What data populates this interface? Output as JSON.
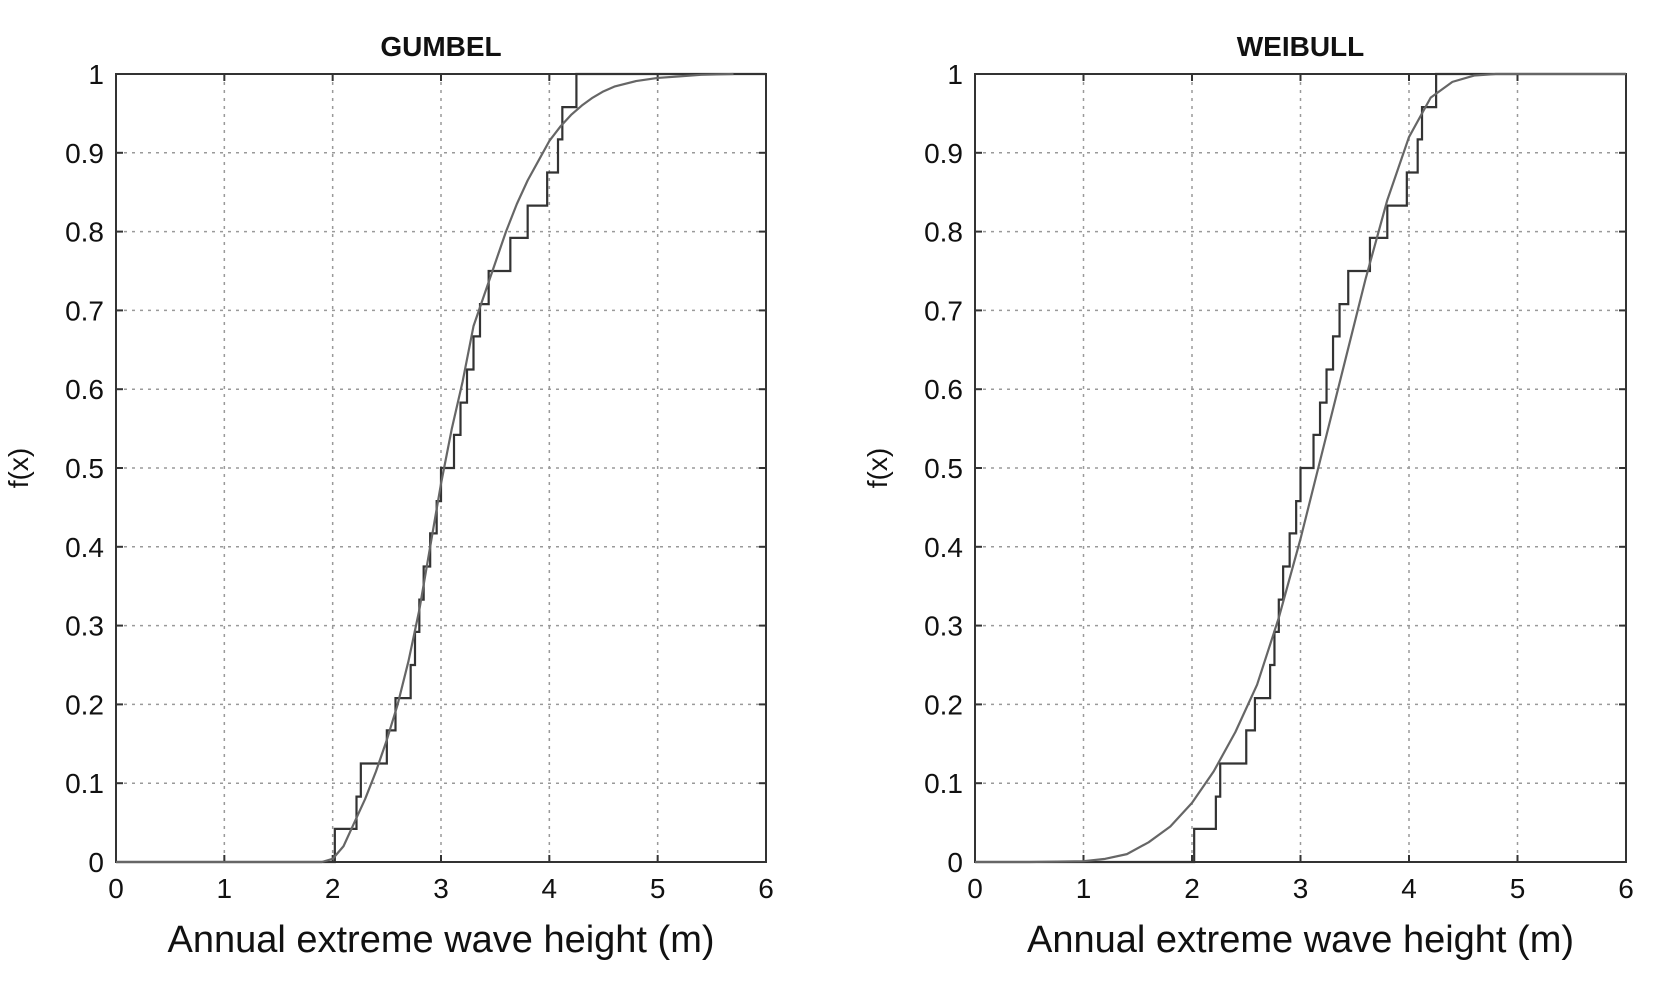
{
  "chart_data": [
    {
      "type": "line",
      "title": "GUMBEL",
      "xlabel": "Annual extreme wave height (m)",
      "ylabel": "f(x)",
      "xlim": [
        0,
        6
      ],
      "ylim": [
        0,
        1
      ],
      "xticks": [
        "0",
        "1",
        "2",
        "3",
        "4",
        "5",
        "6"
      ],
      "yticks": [
        "0",
        "0.1",
        "0.2",
        "0.3",
        "0.4",
        "0.5",
        "0.6",
        "0.7",
        "0.8",
        "0.9",
        "1"
      ],
      "grid": true,
      "series": [
        {
          "kind": "empirical-step",
          "color": "#333333",
          "steps": [
            [
              0,
              0
            ],
            [
              2.02,
              0.042
            ],
            [
              2.22,
              0.083
            ],
            [
              2.26,
              0.125
            ],
            [
              2.5,
              0.167
            ],
            [
              2.58,
              0.208
            ],
            [
              2.72,
              0.25
            ],
            [
              2.76,
              0.292
            ],
            [
              2.8,
              0.333
            ],
            [
              2.84,
              0.375
            ],
            [
              2.9,
              0.417
            ],
            [
              2.96,
              0.458
            ],
            [
              3.0,
              0.5
            ],
            [
              3.12,
              0.542
            ],
            [
              3.18,
              0.583
            ],
            [
              3.24,
              0.625
            ],
            [
              3.3,
              0.667
            ],
            [
              3.36,
              0.708
            ],
            [
              3.44,
              0.75
            ],
            [
              3.64,
              0.792
            ],
            [
              3.8,
              0.833
            ],
            [
              3.98,
              0.875
            ],
            [
              4.08,
              0.917
            ],
            [
              4.12,
              0.958
            ],
            [
              4.25,
              1.0
            ],
            [
              6,
              1.0
            ]
          ]
        },
        {
          "kind": "fitted-cdf",
          "color": "#666666",
          "x": [
            0,
            1.0,
            1.9,
            2.0,
            2.1,
            2.2,
            2.3,
            2.4,
            2.5,
            2.6,
            2.7,
            2.8,
            2.9,
            3.0,
            3.1,
            3.2,
            3.3,
            3.4,
            3.5,
            3.6,
            3.7,
            3.8,
            3.9,
            4.0,
            4.1,
            4.2,
            4.3,
            4.4,
            4.5,
            4.6,
            4.8,
            5.0,
            5.2,
            5.4,
            5.7
          ],
          "y": [
            0,
            0.0,
            0.0,
            0.004,
            0.02,
            0.05,
            0.08,
            0.115,
            0.155,
            0.2,
            0.255,
            0.32,
            0.4,
            0.48,
            0.55,
            0.61,
            0.68,
            0.72,
            0.76,
            0.8,
            0.835,
            0.865,
            0.89,
            0.915,
            0.933,
            0.948,
            0.96,
            0.97,
            0.978,
            0.984,
            0.991,
            0.995,
            0.997,
            0.999,
            1.0
          ]
        }
      ]
    },
    {
      "type": "line",
      "title": "WEIBULL",
      "xlabel": "Annual extreme wave height (m)",
      "ylabel": "f(x)",
      "xlim": [
        0,
        6
      ],
      "ylim": [
        0,
        1
      ],
      "xticks": [
        "0",
        "1",
        "2",
        "3",
        "4",
        "5",
        "6"
      ],
      "yticks": [
        "0",
        "0.1",
        "0.2",
        "0.3",
        "0.4",
        "0.5",
        "0.6",
        "0.7",
        "0.8",
        "0.9",
        "1"
      ],
      "grid": true,
      "series": [
        {
          "kind": "empirical-step",
          "color": "#333333",
          "steps": [
            [
              0,
              0
            ],
            [
              2.02,
              0.042
            ],
            [
              2.22,
              0.083
            ],
            [
              2.26,
              0.125
            ],
            [
              2.5,
              0.167
            ],
            [
              2.58,
              0.208
            ],
            [
              2.72,
              0.25
            ],
            [
              2.76,
              0.292
            ],
            [
              2.8,
              0.333
            ],
            [
              2.84,
              0.375
            ],
            [
              2.9,
              0.417
            ],
            [
              2.96,
              0.458
            ],
            [
              3.0,
              0.5
            ],
            [
              3.12,
              0.542
            ],
            [
              3.18,
              0.583
            ],
            [
              3.24,
              0.625
            ],
            [
              3.3,
              0.667
            ],
            [
              3.36,
              0.708
            ],
            [
              3.44,
              0.75
            ],
            [
              3.64,
              0.792
            ],
            [
              3.8,
              0.833
            ],
            [
              3.98,
              0.875
            ],
            [
              4.08,
              0.917
            ],
            [
              4.12,
              0.958
            ],
            [
              4.25,
              1.0
            ],
            [
              6,
              1.0
            ]
          ]
        },
        {
          "kind": "fitted-cdf",
          "color": "#666666",
          "x": [
            0,
            0.5,
            1.0,
            1.2,
            1.4,
            1.6,
            1.8,
            2.0,
            2.2,
            2.4,
            2.6,
            2.8,
            3.0,
            3.2,
            3.4,
            3.6,
            3.8,
            4.0,
            4.2,
            4.4,
            4.6,
            4.8,
            5.0,
            6.0
          ],
          "y": [
            0,
            0.0,
            0.001,
            0.004,
            0.01,
            0.025,
            0.045,
            0.075,
            0.115,
            0.165,
            0.225,
            0.31,
            0.41,
            0.52,
            0.63,
            0.74,
            0.84,
            0.92,
            0.97,
            0.99,
            0.998,
            1.0,
            1.0,
            1.0
          ]
        }
      ]
    }
  ]
}
